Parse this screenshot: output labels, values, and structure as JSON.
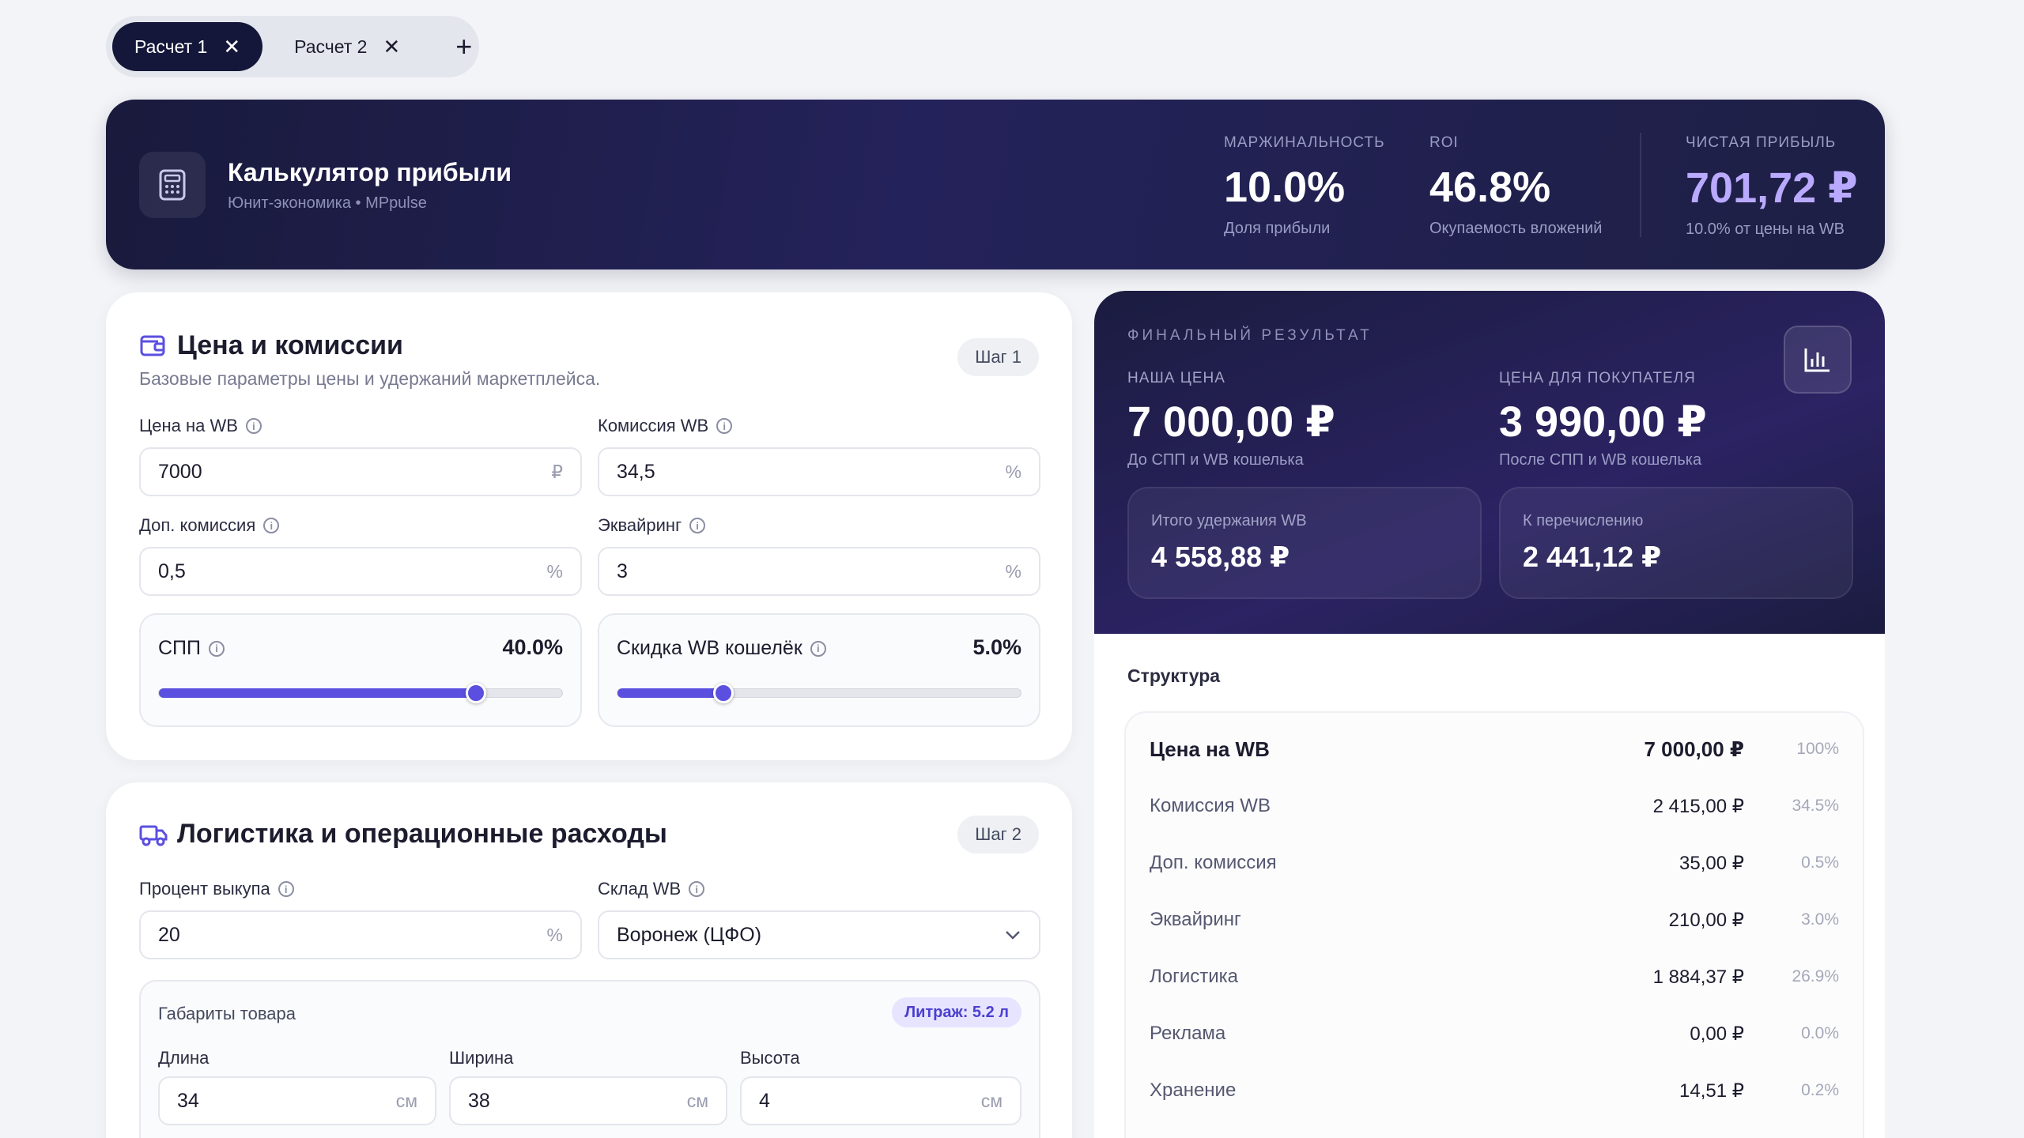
{
  "tabs": [
    {
      "label": "Расчет 1",
      "active": true
    },
    {
      "label": "Расчет 2",
      "active": false
    }
  ],
  "banner": {
    "title": "Калькулятор прибыли",
    "subtitle": "Юнит-экономика • MPpulse",
    "metrics": [
      {
        "label": "МАРЖИНАЛЬНОСТЬ",
        "value": "10.0%",
        "caption": "Доля прибыли"
      },
      {
        "label": "ROI",
        "value": "46.8%",
        "caption": "Окупаемость вложений"
      },
      {
        "label": "ЧИСТАЯ ПРИБЫЛЬ",
        "value": "701,72 ₽",
        "caption": "10.0% от цены на WB"
      }
    ]
  },
  "price_card": {
    "title": "Цена и комиссии",
    "subtitle": "Базовые параметры цены и удержаний маркетплейса.",
    "step": "Шаг 1",
    "fields": {
      "price": {
        "label": "Цена на WB",
        "value": "7000",
        "unit": "₽"
      },
      "commission": {
        "label": "Комиссия WB",
        "value": "34,5",
        "unit": "%"
      },
      "extra": {
        "label": "Доп. комиссия",
        "value": "0,5",
        "unit": "%"
      },
      "acquiring": {
        "label": "Эквайринг",
        "value": "3",
        "unit": "%"
      }
    },
    "spp": {
      "label": "СПП",
      "value": "40.0%",
      "fraction": 0.787
    },
    "wallet": {
      "label": "Скидка WB кошелёк",
      "value": "5.0%",
      "fraction": 0.262
    }
  },
  "logistics_card": {
    "title": "Логистика и операционные расходы",
    "step": "Шаг 2",
    "buyout": {
      "label": "Процент выкупа",
      "value": "20",
      "unit": "%"
    },
    "warehouse": {
      "label": "Склад WB",
      "value": "Воронеж (ЦФО)"
    },
    "dims": {
      "title": "Габариты товара",
      "litrage": "Литраж: 5.2 л",
      "length": {
        "label": "Длина",
        "value": "34",
        "unit": "см"
      },
      "width": {
        "label": "Ширина",
        "value": "38",
        "unit": "см"
      },
      "height": {
        "label": "Высота",
        "value": "4",
        "unit": "см"
      }
    }
  },
  "result": {
    "label": "ФИНАЛЬНЫЙ РЕЗУЛЬТАТ",
    "our_price": {
      "label": "НАША ЦЕНА",
      "value": "7 000,00 ₽",
      "caption": "До СПП и WB кошелька"
    },
    "buyer_price": {
      "label": "ЦЕНА ДЛЯ ПОКУПАТЕЛЯ",
      "value": "3 990,00 ₽",
      "caption": "После СПП и WB кошелька"
    },
    "withheld": {
      "label": "Итого удержания WB",
      "value": "4 558,88 ₽"
    },
    "payout": {
      "label": "К перечислению",
      "value": "2 441,12 ₽"
    },
    "structure_title": "Структура",
    "structure": [
      {
        "name": "Цена на WB",
        "amount": "7 000,00 ₽",
        "pct": "100%"
      },
      {
        "name": "Комиссия WB",
        "amount": "2 415,00 ₽",
        "pct": "34.5%"
      },
      {
        "name": "Доп. комиссия",
        "amount": "35,00 ₽",
        "pct": "0.5%"
      },
      {
        "name": "Эквайринг",
        "amount": "210,00 ₽",
        "pct": "3.0%"
      },
      {
        "name": "Логистика",
        "amount": "1 884,37 ₽",
        "pct": "26.9%"
      },
      {
        "name": "Реклама",
        "amount": "0,00 ₽",
        "pct": "0.0%"
      },
      {
        "name": "Хранение",
        "amount": "14,51 ₽",
        "pct": "0.2%"
      }
    ]
  }
}
